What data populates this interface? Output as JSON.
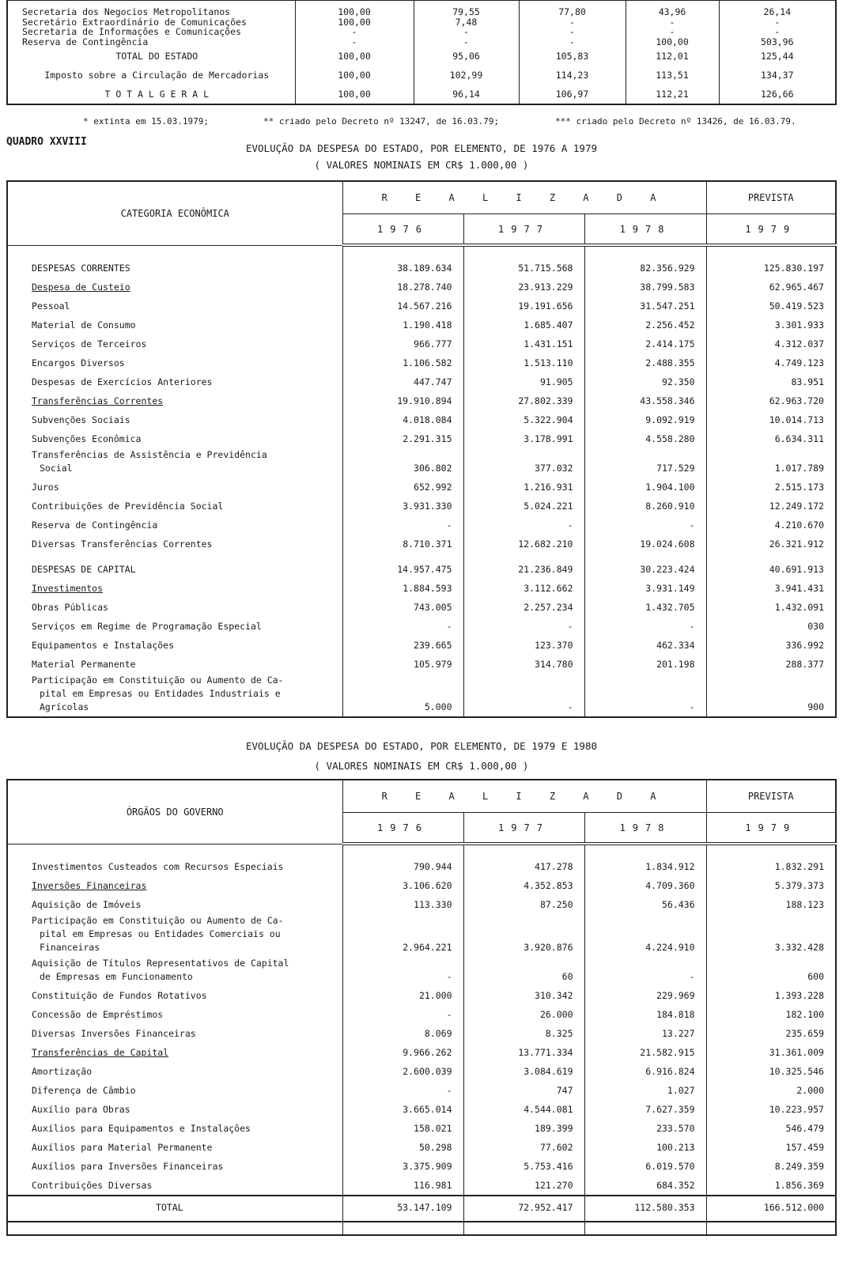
{
  "top_table": {
    "rows": [
      {
        "label": "Secretaria dos Negocios Metropolitanos",
        "values": [
          "100,00",
          "79,55",
          "77,80",
          "43,96",
          "26,14"
        ]
      },
      {
        "label": "Secretário Extraordinário de Comunicações",
        "values": [
          "100,00",
          "7,48",
          "-",
          "-",
          "-"
        ]
      },
      {
        "label": "Secretaria de Informações e Comunicações",
        "values": [
          "-",
          "-",
          "-",
          "-",
          "-"
        ]
      },
      {
        "label": "Reserva de Contingência",
        "values": [
          "-",
          "-",
          "-",
          "100,00",
          "503,96"
        ]
      },
      {
        "label": "TOTAL DO ESTADO",
        "values": [
          "100,00",
          "95,06",
          "105,83",
          "112,01",
          "125,44"
        ],
        "total": true
      },
      {
        "label": "Imposto sobre a Circulação de Mercadorias",
        "values": [
          "100,00",
          "102,99",
          "114,23",
          "113,51",
          "134,37"
        ],
        "total": true
      },
      {
        "label": "T O T A L    G E R A L",
        "values": [
          "100,00",
          "96,14",
          "106,97",
          "112,21",
          "126,66"
        ],
        "total": true
      }
    ]
  },
  "footnotes": [
    "* extinta em 15.03.1979;",
    "** criado pelo Decreto nº 13247, de 16.03.79;",
    "*** criado pelo Decreto nº 13426, de 16.03.79."
  ],
  "quadro": "QUADRO XXVIII",
  "table1": {
    "title": "EVOLUÇÃO DA DESPESA DO ESTADO, POR ELEMENTO, DE 1976 A 1979",
    "subtitle": "( VALORES NOMINAIS EM CR$ 1.000,00 )",
    "category_header": "CATEGORIA ECONÔMICA",
    "realizada_header": "R E A L I Z A D A",
    "prevista_header": "PREVISTA",
    "years": [
      "1976",
      "1977",
      "1978",
      "1979"
    ],
    "rows": [
      {
        "label": "DESPESAS CORRENTES",
        "values": [
          "38.189.634",
          "51.715.568",
          "82.356.929",
          "125.830.197"
        ],
        "padtop": true
      },
      {
        "label": "Despesa de Custeio",
        "values": [
          "18.278.740",
          "23.913.229",
          "38.799.583",
          "62.965.467"
        ],
        "underline": true
      },
      {
        "label": "Pessoal",
        "values": [
          "14.567.216",
          "19.191.656",
          "31.547.251",
          "50.419.523"
        ]
      },
      {
        "label": "Material de Consumo",
        "values": [
          "1.190.418",
          "1.685.407",
          "2.256.452",
          "3.301.933"
        ]
      },
      {
        "label": "Serviços de Terceiros",
        "values": [
          "966.777",
          "1.431.151",
          "2.414.175",
          "4.312.037"
        ]
      },
      {
        "label": "Encargos Diversos",
        "values": [
          "1.106.582",
          "1.513.110",
          "2.488.355",
          "4.749.123"
        ]
      },
      {
        "label": "Despesas de Exercícios Anteriores",
        "values": [
          "447.747",
          "91.905",
          "92.350",
          "83.951"
        ]
      },
      {
        "label": "Transferências Correntes",
        "values": [
          "19.910.894",
          "27.802.339",
          "43.558.346",
          "62.963.720"
        ],
        "underline": true
      },
      {
        "label": "Subvenções Sociais",
        "values": [
          "4.018.084",
          "5.322.904",
          "9.092.919",
          "10.014.713"
        ]
      },
      {
        "label": "Subvenções Econômica",
        "values": [
          "2.291.315",
          "3.178.991",
          "4.558.280",
          "6.634.311"
        ]
      },
      {
        "label": "Transferências de Assistência e Previdência",
        "label2": "Social",
        "values": [
          "306.802",
          "377.032",
          "717.529",
          "1.017.789"
        ]
      },
      {
        "label": "Juros",
        "values": [
          "652.992",
          "1.216.931",
          "1.904.100",
          "2.515.173"
        ]
      },
      {
        "label": "Contribuições  de Previdência Social",
        "values": [
          "3.931.330",
          "5.024.221",
          "8.260.910",
          "12.249.172"
        ]
      },
      {
        "label": "Reserva de Contingência",
        "values": [
          "-",
          "-",
          "-",
          "4.210.670"
        ]
      },
      {
        "label": "Diversas Transferências Correntes",
        "values": [
          "8.710.371",
          "12.682.210",
          "19.024.608",
          "26.321.912"
        ]
      },
      {
        "label": "DESPESAS DE CAPITAL",
        "values": [
          "14.957.475",
          "21.236.849",
          "30.223.424",
          "40.691.913"
        ],
        "gap": true
      },
      {
        "label": "Investimentos",
        "values": [
          "1.884.593",
          "3.112.662",
          "3.931.149",
          "3.941.431"
        ],
        "underline": true
      },
      {
        "label": "Obras Públicas",
        "values": [
          "743.005",
          "2.257.234",
          "1.432.705",
          "1.432.091"
        ]
      },
      {
        "label": "Serviços em Regime de Programação Especial",
        "values": [
          "-",
          "-",
          "-",
          "030"
        ]
      },
      {
        "label": "Equipamentos e Instalações",
        "values": [
          "239.665",
          "123.370",
          "462.334",
          "336.992"
        ]
      },
      {
        "label": "Material Permanente",
        "values": [
          "105.979",
          "314.780",
          "201.198",
          "288.377"
        ]
      },
      {
        "label": "Participação em Constituição ou Aumento de Ca-",
        "label2": "pital em Empresas ou Entidades Industriais e Agrícolas",
        "values": [
          "5.000",
          "-",
          "-",
          "900"
        ],
        "gap": true
      }
    ]
  },
  "table2": {
    "title": "EVOLUÇÃO DA DESPESA DO ESTADO, POR ELEMENTO, DE 1979 E 1980",
    "subtitle": "( VALORES NOMINAIS EM CR$ 1.000,00 )",
    "category_header": "ÓRGÃOS DO GOVERNO",
    "realizada_header": "R E A L I Z A D A",
    "prevista_header": "PREVISTA",
    "years": [
      "1976",
      "1977",
      "1978",
      "1979"
    ],
    "rows": [
      {
        "label": "Investimentos Custeados com Recursos Especiais",
        "values": [
          "790.944",
          "417.278",
          "1.834.912",
          "1.832.291"
        ],
        "padtop": true
      },
      {
        "label": "Inversões Financeiras",
        "values": [
          "3.106.620",
          "4.352.853",
          "4.709.360",
          "5.379.373"
        ],
        "underline": true
      },
      {
        "label": "Aquisição de Imóveis",
        "values": [
          "113.330",
          "87.250",
          "56.436",
          "188.123"
        ]
      },
      {
        "label": "Participação em Constituição ou Aumento de Ca-",
        "label2": "pital em Empresas ou Entidades Comerciais ou Financeiras",
        "values": [
          "2.964.221",
          "3.920.876",
          "4.224.910",
          "3.332.428"
        ]
      },
      {
        "label": "Aquisição de Títulos Representativos de Capital",
        "label2": "de Empresas em Funcionamento",
        "values": [
          "-",
          "60",
          "-",
          "600"
        ]
      },
      {
        "label": "Constituição de Fundos Rotativos",
        "values": [
          "21.000",
          "310.342",
          "229.969",
          "1.393.228"
        ]
      },
      {
        "label": "Concessão de Empréstimos",
        "values": [
          "-",
          "26.000",
          "184.818",
          "182.100"
        ]
      },
      {
        "label": "Diversas Inversões Financeiras",
        "values": [
          "8.069",
          "8.325",
          "13.227",
          "235.659"
        ]
      },
      {
        "label": "Transferências de Capital",
        "values": [
          "9.966.262",
          "13.771.334",
          "21.582.915",
          "31.361.009"
        ],
        "underline": true
      },
      {
        "label": "Amortização",
        "values": [
          "2.600.039",
          "3.084.619",
          "6.916.824",
          "10.325.546"
        ]
      },
      {
        "label": "Diferença de Câmbio",
        "values": [
          "-",
          "747",
          "1.027",
          "2.000"
        ]
      },
      {
        "label": "Auxílio para Obras",
        "values": [
          "3.665.014",
          "4.544.081",
          "7.627.359",
          "10.223.957"
        ]
      },
      {
        "label": "Auxílios para Equipamentos e Instalações",
        "values": [
          "158.021",
          "189.399",
          "233.570",
          "546.479"
        ]
      },
      {
        "label": "Auxílios para Material Permanente",
        "values": [
          "50.298",
          "77.602",
          "100.213",
          "157.459"
        ]
      },
      {
        "label": "Auxílios para Inversões Financeiras",
        "values": [
          "3.375.909",
          "5.753.416",
          "6.019.570",
          "8.249.359"
        ]
      },
      {
        "label": "Contribuições Diversas",
        "values": [
          "116.981",
          "121.270",
          "684.352",
          "1.856.369"
        ]
      }
    ],
    "total": {
      "label": "TOTAL",
      "values": [
        "53.147.109",
        "72.952.417",
        "112.580.353",
        "166.512.000"
      ]
    }
  }
}
